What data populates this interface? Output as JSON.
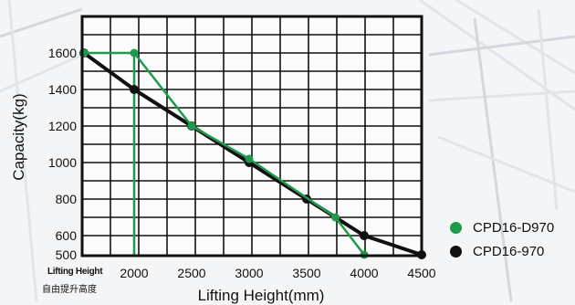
{
  "chart_data": {
    "type": "line",
    "xlabel": "Lifting Height(mm)",
    "ylabel": "Capacity(kg)",
    "x_ticks": [
      "2000",
      "2500",
      "3000",
      "3500",
      "4000",
      "4500"
    ],
    "y_ticks": [
      "500",
      "600",
      "800",
      "1000",
      "1200",
      "1400",
      "1600"
    ],
    "xlim": [
      1775,
      4500
    ],
    "ylim": [
      500,
      1700
    ],
    "grid": true,
    "legend_position": "right",
    "corner_label": "Lifting Height",
    "corner_label_cn": "自由提升高度",
    "series": [
      {
        "name": "CPD16-D970",
        "color": "#1e9a4c",
        "points": [
          [
            1775,
            1600
          ],
          [
            2000,
            1600
          ],
          [
            2500,
            1200
          ],
          [
            3000,
            1020
          ],
          [
            3750,
            700
          ],
          [
            4000,
            500
          ]
        ],
        "drop_line": {
          "x": 2000,
          "from": 1600,
          "to": 500
        }
      },
      {
        "name": "CPD16-970",
        "color": "#111111",
        "points": [
          [
            1775,
            1600
          ],
          [
            2000,
            1400
          ],
          [
            2500,
            1200
          ],
          [
            3000,
            1000
          ],
          [
            3500,
            800
          ],
          [
            4000,
            600
          ],
          [
            4500,
            500
          ]
        ],
        "drop_line": null
      }
    ]
  }
}
